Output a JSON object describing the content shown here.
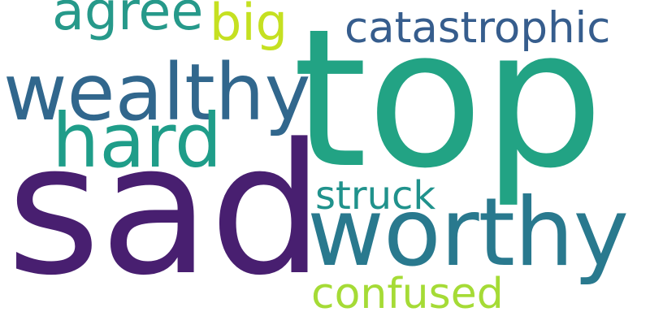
{
  "words": [
    {
      "key": "top",
      "text": "top",
      "color": "#22a384"
    },
    {
      "key": "sad",
      "text": "sad",
      "color": "#481f70"
    },
    {
      "key": "worthy",
      "text": "worthy",
      "color": "#29798e"
    },
    {
      "key": "wealthy",
      "text": "wealthy",
      "color": "#31678d"
    },
    {
      "key": "hard",
      "text": "hard",
      "color": "#1f9d89"
    },
    {
      "key": "catastrophic",
      "text": "catastrophic",
      "color": "#365d8d"
    },
    {
      "key": "agree",
      "text": "agree",
      "color": "#26998a"
    },
    {
      "key": "big",
      "text": "big",
      "color": "#c5e021"
    },
    {
      "key": "struck",
      "text": "struck",
      "color": "#20928c"
    },
    {
      "key": "confused",
      "text": "confused",
      "color": "#a5db36"
    }
  ]
}
